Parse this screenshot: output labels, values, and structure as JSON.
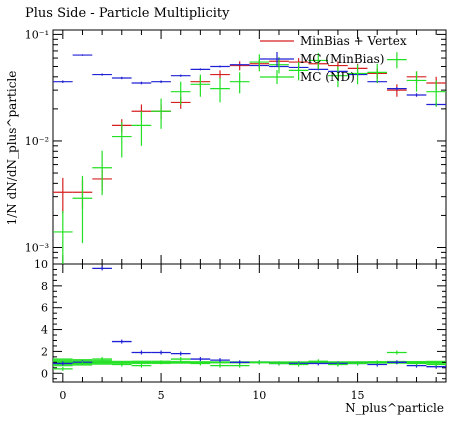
{
  "chart_data": {
    "type": "scatter",
    "title": "Plus Side - Particle Multiplicity",
    "ylabel": "1/N dN/dN_plus^particle",
    "xlabel": "N_plus^particle",
    "xlim": [
      -0.5,
      19.5
    ],
    "ylim": [
      0.0007,
      0.11
    ],
    "yscale": "log",
    "y_ticks": [
      {
        "v": 0.001,
        "label": "10⁻³"
      },
      {
        "v": 0.01,
        "label": "10⁻²"
      },
      {
        "v": 0.1,
        "label": "10⁻¹"
      }
    ],
    "x_ticks": [
      0,
      5,
      10,
      15
    ],
    "legend_position": "top-right",
    "series": [
      {
        "name": "MinBias + Vertex",
        "color": "#d62020",
        "x": [
          0,
          1,
          2,
          3,
          4,
          5,
          6,
          7,
          8,
          9,
          10,
          11,
          12,
          13,
          14,
          15,
          16,
          17,
          18,
          19
        ],
        "y": [
          0.0033,
          0.0033,
          0.0044,
          0.014,
          0.019,
          0.019,
          0.023,
          0.036,
          0.042,
          0.051,
          0.053,
          0.056,
          0.055,
          0.053,
          0.051,
          0.048,
          0.043,
          0.03,
          0.04,
          0.035
        ],
        "err": [
          0.0012,
          0.001,
          0.001,
          0.002,
          0.003,
          0.003,
          0.003,
          0.004,
          0.004,
          0.005,
          0.005,
          0.005,
          0.005,
          0.005,
          0.005,
          0.005,
          0.005,
          0.004,
          0.005,
          0.005
        ]
      },
      {
        "name": "MC (MinBias)",
        "color": "#2020d6",
        "x": [
          0,
          1,
          2,
          3,
          4,
          5,
          6,
          7,
          8,
          9,
          10,
          11,
          12,
          13,
          14,
          15,
          16,
          17,
          18,
          19
        ],
        "y": [
          0.036,
          0.064,
          0.042,
          0.039,
          0.035,
          0.036,
          0.041,
          0.047,
          0.05,
          0.052,
          0.051,
          0.05,
          0.049,
          0.047,
          0.045,
          0.042,
          0.036,
          0.031,
          0.027,
          0.022
        ],
        "err": [
          0.001,
          0.001,
          0.001,
          0.001,
          0.001,
          0.001,
          0.001,
          0.001,
          0.001,
          0.001,
          0.001,
          0.001,
          0.001,
          0.001,
          0.001,
          0.001,
          0.001,
          0.001,
          0.001,
          0.001
        ]
      },
      {
        "name": "MC (ND)",
        "color": "#22e022",
        "x": [
          0,
          1,
          2,
          3,
          4,
          5,
          6,
          7,
          8,
          9,
          10,
          11,
          12,
          13,
          14,
          15,
          16,
          17,
          18,
          19
        ],
        "y": [
          0.0014,
          0.0029,
          0.0056,
          0.011,
          0.014,
          0.019,
          0.029,
          0.034,
          0.031,
          0.036,
          0.055,
          0.052,
          0.046,
          0.057,
          0.041,
          0.043,
          0.044,
          0.058,
          0.037,
          0.029
        ],
        "err": [
          0.0008,
          0.0018,
          0.0025,
          0.004,
          0.005,
          0.006,
          0.007,
          0.008,
          0.008,
          0.008,
          0.01,
          0.009,
          0.009,
          0.01,
          0.009,
          0.009,
          0.009,
          0.01,
          0.008,
          0.008
        ]
      }
    ],
    "ratio_panel": {
      "ylim": [
        -0.8,
        10
      ],
      "y_ticks": [
        0,
        2,
        4,
        6,
        8,
        10
      ],
      "reference_band_color": "#22e022",
      "ratio_series": [
        {
          "series": "MC (MinBias)",
          "color": "#2020d6",
          "x": [
            0,
            1,
            2,
            3,
            4,
            5,
            6,
            7,
            8,
            9,
            10,
            11,
            12,
            13,
            14,
            15,
            16,
            17,
            18,
            19
          ],
          "y": [
            0.9,
            1.0,
            9.6,
            2.9,
            1.9,
            1.9,
            1.8,
            1.3,
            1.2,
            1.0,
            1.0,
            0.9,
            0.9,
            0.9,
            0.9,
            0.9,
            0.8,
            1.0,
            0.7,
            0.6
          ]
        },
        {
          "series": "MC (ND)",
          "color": "#22e022",
          "x": [
            0,
            1,
            2,
            3,
            4,
            5,
            6,
            7,
            8,
            9,
            10,
            11,
            12,
            13,
            14,
            15,
            16,
            17,
            18,
            19
          ],
          "y": [
            0.4,
            0.9,
            1.3,
            0.8,
            0.7,
            1.0,
            1.3,
            0.9,
            0.7,
            0.7,
            1.0,
            0.9,
            0.8,
            1.1,
            0.8,
            0.9,
            1.0,
            1.9,
            0.9,
            0.8
          ]
        }
      ]
    }
  }
}
